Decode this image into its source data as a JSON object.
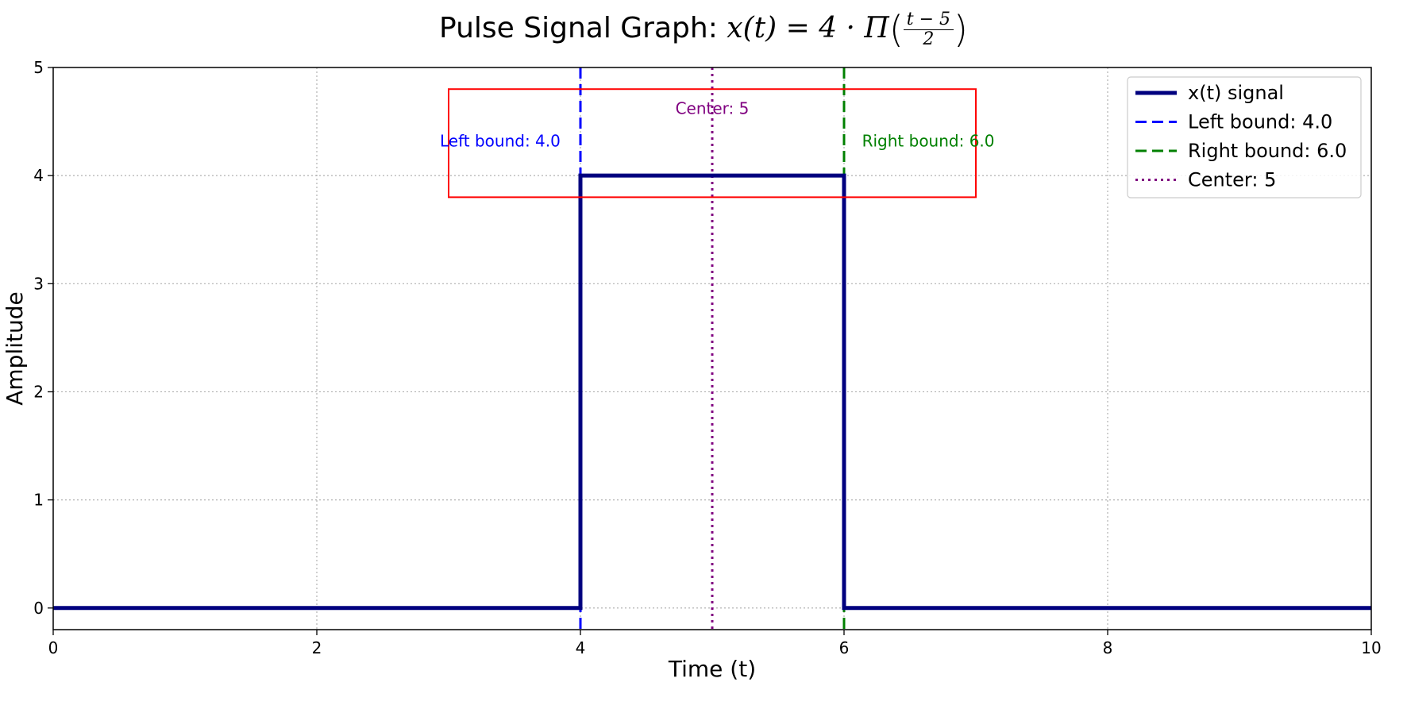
{
  "chart_data": {
    "type": "line",
    "title": "Pulse Signal Graph:",
    "title_formula": {
      "lhs": "x(t) = 4 · Π",
      "numerator": "t − 5",
      "denominator": "2"
    },
    "xlabel": "Time (t)",
    "ylabel": "Amplitude",
    "xlim": [
      0,
      10
    ],
    "ylim": [
      -0.2,
      5
    ],
    "xticks": [
      0,
      2,
      4,
      6,
      8,
      10
    ],
    "yticks": [
      0,
      1,
      2,
      3,
      4,
      5
    ],
    "grid": true,
    "legend_position": "top-right",
    "series": [
      {
        "name": "x(t) signal",
        "color": "#00007f",
        "style": "solid",
        "x": [
          0,
          4,
          4,
          6,
          6,
          10
        ],
        "y": [
          0,
          0,
          4,
          4,
          0,
          0
        ]
      }
    ],
    "vlines": [
      {
        "name": "Left bound: 4.0",
        "x": 4,
        "color": "#0000ff",
        "style": "dashed"
      },
      {
        "name": "Right bound: 6.0",
        "x": 6,
        "color": "#008000",
        "style": "dashed"
      },
      {
        "name": "Center: 5",
        "x": 5,
        "color": "#800080",
        "style": "dotted"
      }
    ],
    "annotations": [
      {
        "text": "Left bound: 4.0",
        "x": 3,
        "y": 4.27,
        "color": "#0000ff"
      },
      {
        "text": "Center: 5",
        "x": 5,
        "y": 4.57,
        "color": "#800080"
      },
      {
        "text": "Right bound: 6.0",
        "x": 6.1,
        "y": 4.27,
        "color": "#008000"
      }
    ],
    "highlight_box": {
      "x0": 3,
      "x1": 7,
      "y0": 3.8,
      "y1": 4.8,
      "color": "#ff0000"
    }
  }
}
